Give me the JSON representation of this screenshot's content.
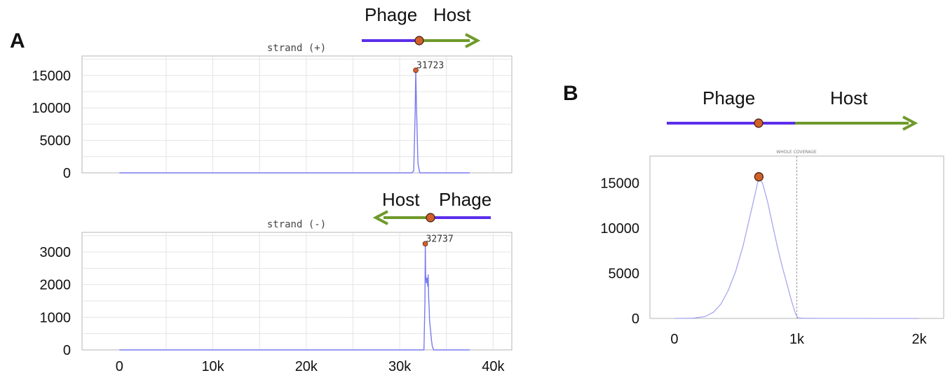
{
  "colors": {
    "phage": "#5b2eea",
    "host": "#6e9a2a",
    "marker": "#d2602a",
    "coverage_line": "#7a7af0",
    "coverage_line_light": "#a7a7f0"
  },
  "panels": {
    "a": {
      "letter": "A",
      "plus_diagram": {
        "left_label": "Phage",
        "right_label": "Host"
      },
      "minus_diagram": {
        "left_label": "Host",
        "right_label": "Phage"
      }
    },
    "b": {
      "letter": "B",
      "diagram": {
        "left_label": "Phage",
        "right_label": "Host"
      }
    }
  },
  "chart_data": [
    {
      "id": "strand-plus",
      "type": "line",
      "title": "strand (+)",
      "xlim": [
        -4000,
        42000
      ],
      "ylim": [
        0,
        18000
      ],
      "x_ticks": [],
      "y_ticks": [
        {
          "value": 0,
          "label": "0"
        },
        {
          "value": 5000,
          "label": "5000"
        },
        {
          "value": 10000,
          "label": "10000"
        },
        {
          "value": 15000,
          "label": "15000"
        }
      ],
      "grid": true,
      "peak": {
        "x": 31723,
        "y": 15800,
        "label": "31723"
      },
      "x": [
        0,
        31300,
        31500,
        31650,
        31723,
        31800,
        31950,
        32150,
        37500
      ],
      "y": [
        0,
        0,
        300,
        9000,
        15800,
        10000,
        1500,
        0,
        0
      ]
    },
    {
      "id": "strand-minus",
      "type": "line",
      "title": "strand (-)",
      "xlim": [
        -4000,
        42000
      ],
      "ylim": [
        0,
        3600
      ],
      "x_ticks": [
        {
          "value": 0,
          "label": "0"
        },
        {
          "value": 10000,
          "label": "10k"
        },
        {
          "value": 20000,
          "label": "20k"
        },
        {
          "value": 30000,
          "label": "30k"
        },
        {
          "value": 40000,
          "label": "40k"
        }
      ],
      "y_ticks": [
        {
          "value": 0,
          "label": "0"
        },
        {
          "value": 1000,
          "label": "1000"
        },
        {
          "value": 2000,
          "label": "2000"
        },
        {
          "value": 3000,
          "label": "3000"
        }
      ],
      "grid": true,
      "peak": {
        "x": 32737,
        "y": 3250,
        "label": "32737"
      },
      "x": [
        0,
        32600,
        32700,
        32737,
        32780,
        32850,
        32920,
        33000,
        33050,
        33100,
        33150,
        33200,
        33300,
        33400,
        33500,
        33650,
        37500
      ],
      "y": [
        0,
        0,
        1500,
        3250,
        2300,
        2050,
        2200,
        1950,
        2300,
        1600,
        1300,
        900,
        600,
        300,
        100,
        0,
        0
      ]
    },
    {
      "id": "whole-coverage",
      "type": "line",
      "title": "WHOLE COVERAGE",
      "xlim": [
        -200,
        2200
      ],
      "ylim": [
        0,
        18000
      ],
      "x_ticks": [
        {
          "value": 0,
          "label": "0"
        },
        {
          "value": 1000,
          "label": "1k"
        },
        {
          "value": 2000,
          "label": "2k"
        }
      ],
      "y_ticks": [
        {
          "value": 0,
          "label": "0"
        },
        {
          "value": 5000,
          "label": "5000"
        },
        {
          "value": 10000,
          "label": "10000"
        },
        {
          "value": 15000,
          "label": "15000"
        }
      ],
      "grid": false,
      "boundary_x": 1000,
      "peak": {
        "x": 690,
        "y": 15700,
        "label": ""
      },
      "x": [
        0,
        150,
        250,
        320,
        380,
        440,
        500,
        560,
        620,
        660,
        690,
        720,
        760,
        800,
        840,
        880,
        920,
        960,
        990,
        1010,
        1050,
        1200,
        1400,
        1600,
        1800,
        2000
      ],
      "y": [
        0,
        20,
        200,
        700,
        1600,
        3100,
        5200,
        8000,
        11500,
        13800,
        15700,
        15000,
        13000,
        10500,
        8000,
        5800,
        3800,
        1800,
        500,
        60,
        20,
        10,
        5,
        0,
        0,
        0
      ]
    }
  ]
}
